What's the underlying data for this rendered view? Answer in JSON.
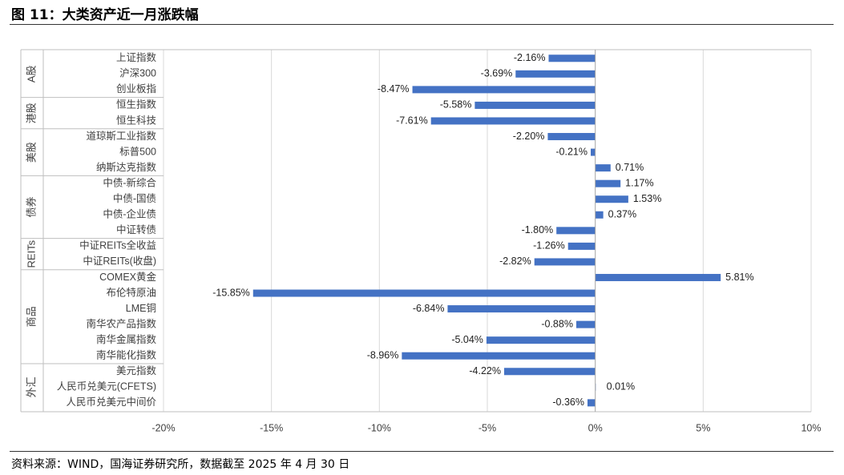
{
  "title": "图 11：大类资产近一月涨跌幅",
  "source": "资料来源：WIND，国海证券研究所，数据截至 2025 年 4 月 30 日",
  "colors": {
    "bar": "#4472C4",
    "grid": "#D9D9D9",
    "frame": "#BFBFBF",
    "text": "#404040"
  },
  "chart_data": {
    "type": "bar",
    "orientation": "horizontal",
    "categories": [
      "上证指数",
      "沪深300",
      "创业板指",
      "恒生指数",
      "恒生科技",
      "道琼斯工业指数",
      "标普500",
      "纳斯达克指数",
      "中债-新综合",
      "中债-国债",
      "中债-企业债",
      "中证转债",
      "中证REITs全收益",
      "中证REITs(收盘)",
      "COMEX黄金",
      "布伦特原油",
      "LME铜",
      "南华农产品指数",
      "南华金属指数",
      "南华能化指数",
      "美元指数",
      "人民币兑美元(CFETS)",
      "人民币兑美元中间价"
    ],
    "values": [
      -2.16,
      -3.69,
      -8.47,
      -5.58,
      -7.61,
      -2.2,
      -0.21,
      0.71,
      1.17,
      1.53,
      0.37,
      -1.8,
      -1.26,
      -2.82,
      5.81,
      -15.85,
      -6.84,
      -0.88,
      -5.04,
      -8.96,
      -4.22,
      0.01,
      -0.36
    ],
    "labels": [
      "-2.16%",
      "-3.69%",
      "-8.47%",
      "-5.58%",
      "-7.61%",
      "-2.20%",
      "-0.21%",
      "0.71%",
      "1.17%",
      "1.53%",
      "0.37%",
      "-1.80%",
      "-1.26%",
      "-2.82%",
      "5.81%",
      "-15.85%",
      "-6.84%",
      "-0.88%",
      "-5.04%",
      "-8.96%",
      "-4.22%",
      "0.01%",
      "-0.36%"
    ],
    "groups": [
      {
        "name": "A股",
        "start": 0,
        "end": 2
      },
      {
        "name": "港股",
        "start": 3,
        "end": 4
      },
      {
        "name": "美股",
        "start": 5,
        "end": 7
      },
      {
        "name": "债券",
        "start": 8,
        "end": 11
      },
      {
        "name": "REITs",
        "start": 12,
        "end": 13
      },
      {
        "name": "商品",
        "start": 14,
        "end": 19
      },
      {
        "name": "外汇",
        "start": 20,
        "end": 22
      }
    ],
    "xlim": [
      -20,
      10
    ],
    "xticks": [
      -20,
      -15,
      -10,
      -5,
      0,
      5,
      10
    ],
    "xtick_labels": [
      "-20%",
      "-15%",
      "-10%",
      "-5%",
      "0%",
      "5%",
      "10%"
    ],
    "grid": true
  }
}
